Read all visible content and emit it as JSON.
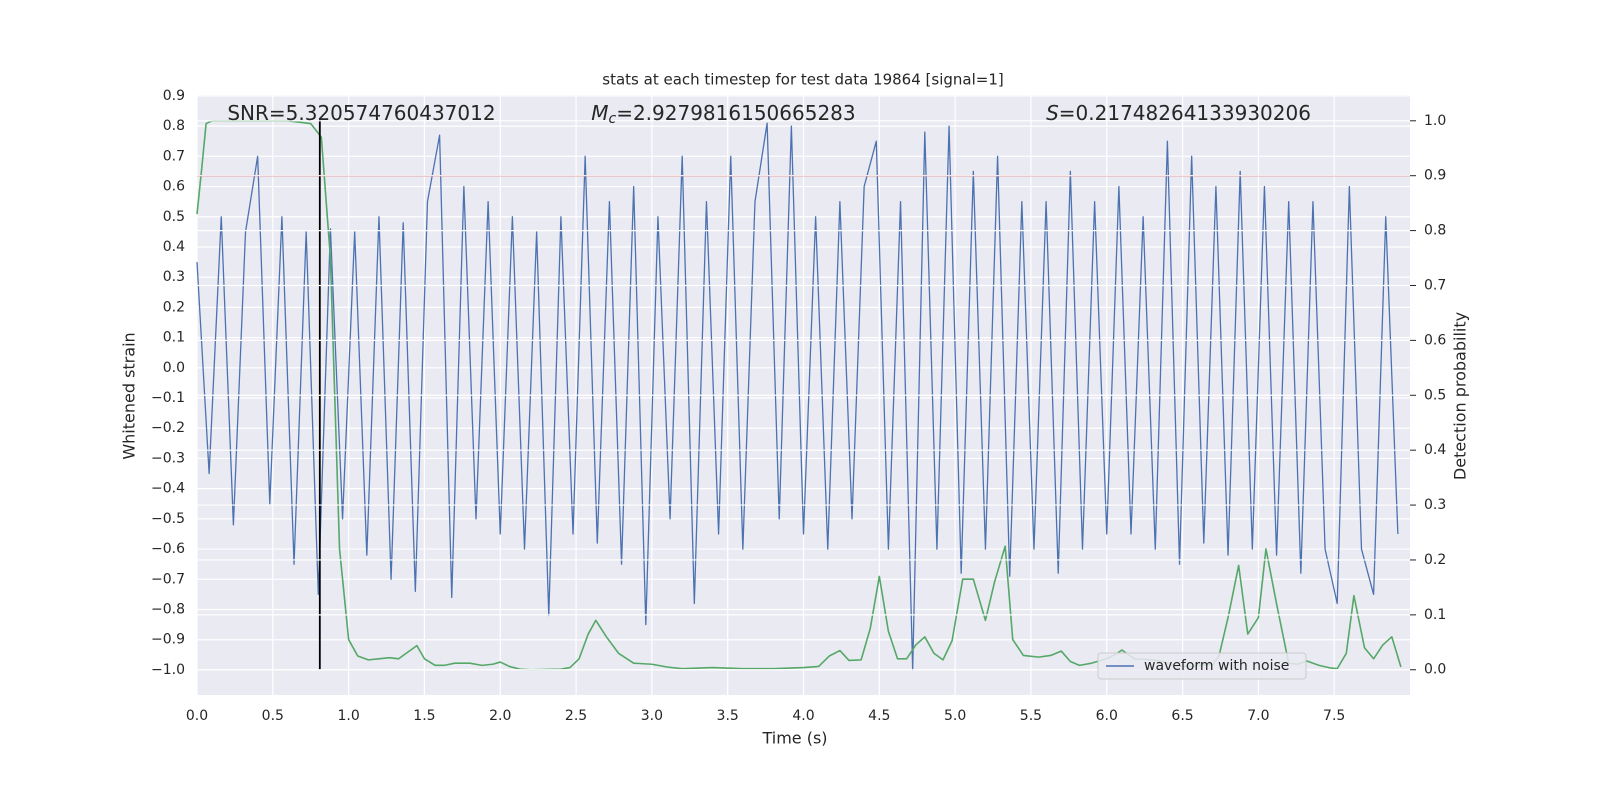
{
  "chart_data": {
    "type": "line",
    "title": "stats at each timestep for test data 19864 [signal=1]",
    "xlabel": "Time (s)",
    "ylabel": "Whitened strain",
    "y2label": "Detection probability",
    "xlim": [
      0,
      8.0
    ],
    "ylim": [
      -1.083,
      0.903
    ],
    "y2lim": [
      -0.046,
      1.047
    ],
    "grid": true,
    "legend": "lower right",
    "xticks": [
      {
        "value": 0,
        "label": "0.0"
      },
      {
        "value": 0.5,
        "label": "0.5"
      },
      {
        "value": 1,
        "label": "1.0"
      },
      {
        "value": 1.5,
        "label": "1.5"
      },
      {
        "value": 2,
        "label": "2.0"
      },
      {
        "value": 2.5,
        "label": "2.5"
      },
      {
        "value": 3,
        "label": "3.0"
      },
      {
        "value": 3.5,
        "label": "3.5"
      },
      {
        "value": 4,
        "label": "4.0"
      },
      {
        "value": 4.5,
        "label": "4.5"
      },
      {
        "value": 5,
        "label": "5.0"
      },
      {
        "value": 5.5,
        "label": "5.5"
      },
      {
        "value": 6,
        "label": "6.0"
      },
      {
        "value": 6.5,
        "label": "6.5"
      },
      {
        "value": 7,
        "label": "7.0"
      },
      {
        "value": 7.5,
        "label": "7.5"
      }
    ],
    "yticks": [
      {
        "value": -1.0,
        "label": "−1.0"
      },
      {
        "value": -0.9,
        "label": "−0.9"
      },
      {
        "value": -0.8,
        "label": "−0.8"
      },
      {
        "value": -0.7,
        "label": "−0.7"
      },
      {
        "value": -0.6,
        "label": "−0.6"
      },
      {
        "value": -0.5,
        "label": "−0.5"
      },
      {
        "value": -0.4,
        "label": "−0.4"
      },
      {
        "value": -0.3,
        "label": "−0.3"
      },
      {
        "value": -0.2,
        "label": "−0.2"
      },
      {
        "value": -0.1,
        "label": "−0.1"
      },
      {
        "value": 0,
        "label": "0.0"
      },
      {
        "value": 0.1,
        "label": "0.1"
      },
      {
        "value": 0.2,
        "label": "0.2"
      },
      {
        "value": 0.3,
        "label": "0.3"
      },
      {
        "value": 0.4,
        "label": "0.4"
      },
      {
        "value": 0.5,
        "label": "0.5"
      },
      {
        "value": 0.6,
        "label": "0.6"
      },
      {
        "value": 0.7,
        "label": "0.7"
      },
      {
        "value": 0.8,
        "label": "0.8"
      },
      {
        "value": 0.9,
        "label": "0.9"
      }
    ],
    "y2ticks": [
      {
        "value": 0,
        "label": "0.0"
      },
      {
        "value": 0.1,
        "label": "0.1"
      },
      {
        "value": 0.2,
        "label": "0.2"
      },
      {
        "value": 0.3,
        "label": "0.3"
      },
      {
        "value": 0.4,
        "label": "0.4"
      },
      {
        "value": 0.5,
        "label": "0.5"
      },
      {
        "value": 0.6,
        "label": "0.6"
      },
      {
        "value": 0.7,
        "label": "0.7"
      },
      {
        "value": 0.8,
        "label": "0.8"
      },
      {
        "value": 0.9,
        "label": "0.9"
      },
      {
        "value": 1.0,
        "label": "1.0"
      }
    ],
    "annotations": [
      {
        "symbol": "SNR",
        "italic": false,
        "text": "=5.320574760437012",
        "x": 0.2
      },
      {
        "symbol": "M",
        "italic": true,
        "subscript": "c",
        "text": "=2.9279816150665283",
        "x": 2.6
      },
      {
        "symbol": "S",
        "italic": true,
        "text": "=0.21748264133930206",
        "x": 5.6
      }
    ],
    "series": [
      {
        "name": "waveform with noise",
        "color": "#4c72b0",
        "x": [
          0.0,
          0.08,
          0.16,
          0.24,
          0.32,
          0.4,
          0.48,
          0.56,
          0.64,
          0.72,
          0.8,
          0.88,
          0.96,
          1.04,
          1.12,
          1.2,
          1.28,
          1.36,
          1.44,
          1.52,
          1.6,
          1.68,
          1.76,
          1.84,
          1.92,
          2.0,
          2.08,
          2.16,
          2.24,
          2.32,
          2.4,
          2.48,
          2.56,
          2.64,
          2.72,
          2.8,
          2.88,
          2.96,
          3.04,
          3.12,
          3.2,
          3.28,
          3.36,
          3.44,
          3.52,
          3.6,
          3.68,
          3.76,
          3.84,
          3.92,
          4.0,
          4.08,
          4.16,
          4.24,
          4.32,
          4.4,
          4.48,
          4.56,
          4.64,
          4.72,
          4.8,
          4.88,
          4.96,
          5.04,
          5.12,
          5.2,
          5.28,
          5.36,
          5.44,
          5.52,
          5.6,
          5.68,
          5.76,
          5.84,
          5.92,
          6.0,
          6.08,
          6.16,
          6.24,
          6.32,
          6.4,
          6.48,
          6.56,
          6.64,
          6.72,
          6.8,
          6.88,
          6.96,
          7.04,
          7.12,
          7.2,
          7.28,
          7.36,
          7.44,
          7.52,
          7.6,
          7.68,
          7.76,
          7.84,
          7.92
        ],
        "values": [
          0.35,
          -0.35,
          0.5,
          -0.52,
          0.45,
          0.7,
          -0.45,
          0.5,
          -0.65,
          0.45,
          -0.75,
          0.46,
          -0.5,
          0.45,
          -0.62,
          0.5,
          -0.7,
          0.48,
          -0.74,
          0.55,
          0.77,
          -0.76,
          0.6,
          -0.5,
          0.55,
          -0.55,
          0.5,
          -0.6,
          0.45,
          -0.82,
          0.5,
          -0.55,
          0.7,
          -0.58,
          0.55,
          -0.65,
          0.6,
          -0.85,
          0.5,
          -0.5,
          0.7,
          -0.78,
          0.55,
          -0.55,
          0.7,
          -0.6,
          0.55,
          0.81,
          -0.5,
          0.8,
          -0.55,
          0.5,
          -0.6,
          0.55,
          -0.5,
          0.6,
          0.75,
          -0.6,
          0.55,
          -1.0,
          0.78,
          -0.6,
          0.8,
          -0.68,
          0.65,
          -0.6,
          0.7,
          -0.69,
          0.55,
          -0.6,
          0.55,
          -0.68,
          0.65,
          -0.6,
          0.55,
          -0.55,
          0.6,
          -0.55,
          0.5,
          -0.6,
          0.75,
          -0.65,
          0.7,
          -0.58,
          0.6,
          -0.62,
          0.65,
          -0.6,
          0.6,
          -0.62,
          0.55,
          -0.68,
          0.55,
          -0.6,
          -0.78,
          0.6,
          -0.6,
          -0.75,
          0.5,
          -0.55
        ]
      },
      {
        "color": "#55a868",
        "axis": "y2",
        "x": [
          0,
          0.03,
          0.06,
          0.1,
          0.2,
          0.4,
          0.6,
          0.75,
          0.82,
          0.88,
          0.94,
          1.0,
          1.06,
          1.13,
          1.2,
          1.27,
          1.33,
          1.45,
          1.5,
          1.57,
          1.63,
          1.7,
          1.8,
          1.88,
          1.95,
          2.0,
          2.06,
          2.13,
          2.2,
          2.4,
          2.46,
          2.52,
          2.58,
          2.63,
          2.7,
          2.78,
          2.88,
          3.0,
          3.1,
          3.2,
          3.4,
          3.6,
          3.8,
          4.0,
          4.1,
          4.17,
          4.24,
          4.3,
          4.38,
          4.44,
          4.5,
          4.56,
          4.62,
          4.68,
          4.74,
          4.8,
          4.86,
          4.92,
          4.98,
          5.05,
          5.12,
          5.2,
          5.26,
          5.33,
          5.38,
          5.45,
          5.55,
          5.63,
          5.7,
          5.76,
          5.82,
          5.9,
          6.0,
          6.07,
          6.1,
          6.18,
          6.3,
          6.37,
          6.45,
          6.55,
          6.7,
          6.74,
          6.8,
          6.87,
          6.93,
          7.0,
          7.05,
          7.12,
          7.2,
          7.26,
          7.32,
          7.4,
          7.48,
          7.52,
          7.58,
          7.63,
          7.7,
          7.76,
          7.82,
          7.88,
          7.94
        ],
        "values": [
          0.83,
          0.91,
          0.995,
          1.0,
          1.0,
          1.0,
          1.0,
          0.995,
          0.97,
          0.75,
          0.22,
          0.055,
          0.025,
          0.018,
          0.02,
          0.022,
          0.02,
          0.044,
          0.02,
          0.008,
          0.008,
          0.012,
          0.012,
          0.008,
          0.01,
          0.014,
          0.006,
          0.001,
          0.0,
          0.001,
          0.004,
          0.02,
          0.065,
          0.09,
          0.06,
          0.03,
          0.012,
          0.01,
          0.005,
          0.002,
          0.004,
          0.002,
          0.002,
          0.004,
          0.006,
          0.025,
          0.035,
          0.017,
          0.018,
          0.075,
          0.17,
          0.07,
          0.02,
          0.02,
          0.045,
          0.06,
          0.03,
          0.018,
          0.053,
          0.165,
          0.165,
          0.09,
          0.16,
          0.225,
          0.055,
          0.026,
          0.023,
          0.026,
          0.034,
          0.015,
          0.008,
          0.012,
          0.02,
          0.03,
          0.036,
          0.02,
          0.018,
          0.015,
          0.007,
          0.006,
          0.01,
          0.025,
          0.095,
          0.19,
          0.065,
          0.095,
          0.22,
          0.12,
          0.012,
          0.01,
          0.016,
          0.008,
          0.003,
          0.002,
          0.03,
          0.135,
          0.04,
          0.02,
          0.045,
          0.06,
          0.005
        ]
      }
    ],
    "hlines": [
      {
        "value": 0.9,
        "axis": "y2",
        "color": "#c44e52"
      }
    ],
    "vlines": [
      {
        "value": 0.81,
        "ymin": -1.0,
        "ymax": 0.82,
        "color": "#000000"
      }
    ]
  }
}
